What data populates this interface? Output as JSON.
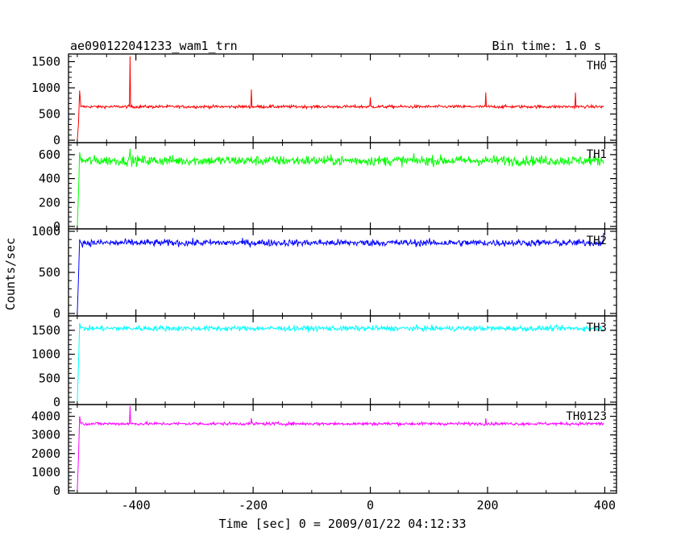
{
  "chart_data": {
    "type": "line",
    "title": "ae090122041233_wam1_trn",
    "subtitle": "Bin time: 1.0 s",
    "xlabel": "Time [sec] 0 = 2009/01/22 04:12:33",
    "ylabel": "Counts/sec",
    "xlim": [
      -515,
      420
    ],
    "x_ticks": [
      -400,
      -200,
      0,
      200,
      400
    ],
    "x_tick_labels": [
      "-400",
      "-200",
      "0",
      "200",
      "400"
    ],
    "panels": [
      {
        "name": "TH0",
        "color": "#ff0000",
        "ylim": [
          0,
          1600
        ],
        "y_ticks": [
          0,
          500,
          1000,
          1500
        ],
        "y_tick_labels": [
          "0",
          "500",
          "1000",
          "1500"
        ],
        "start": -500,
        "mean": 640,
        "noise": 20,
        "first_peak": 950,
        "spikes": [
          [
            -410,
            1600
          ],
          [
            -203,
            970
          ],
          [
            0,
            820
          ],
          [
            197,
            910
          ],
          [
            350,
            910
          ]
        ]
      },
      {
        "name": "TH1",
        "color": "#00ff00",
        "ylim": [
          0,
          680
        ],
        "y_ticks": [
          0,
          200,
          400,
          600
        ],
        "y_tick_labels": [
          "0",
          "200",
          "400",
          "600"
        ],
        "start": -500,
        "mean": 550,
        "noise": 30,
        "first_peak": 620,
        "spikes": [
          [
            -410,
            650
          ]
        ]
      },
      {
        "name": "TH2",
        "color": "#0000ff",
        "ylim": [
          0,
          1000
        ],
        "y_ticks": [
          0,
          500,
          1000
        ],
        "y_tick_labels": [
          "0",
          "500",
          "1000"
        ],
        "start": -500,
        "mean": 860,
        "noise": 30,
        "first_peak": 900,
        "spikes": [
          [
            398,
            980
          ]
        ]
      },
      {
        "name": "TH3",
        "color": "#00ffff",
        "ylim": [
          0,
          1750
        ],
        "y_ticks": [
          0,
          500,
          1000,
          1500
        ],
        "y_tick_labels": [
          "0",
          "500",
          "1000",
          "1500"
        ],
        "start": -500,
        "mean": 1540,
        "noise": 40,
        "first_peak": 1650,
        "spikes": []
      },
      {
        "name": "TH0123",
        "color": "#ff00ff",
        "ylim": [
          0,
          4500
        ],
        "y_ticks": [
          0,
          1000,
          2000,
          3000,
          4000
        ],
        "y_tick_labels": [
          "0",
          "1000",
          "2000",
          "3000",
          "4000"
        ],
        "start": -500,
        "mean": 3600,
        "noise": 60,
        "first_peak": 4000,
        "spikes": [
          [
            -410,
            4550
          ],
          [
            -203,
            3900
          ],
          [
            197,
            3900
          ]
        ]
      }
    ]
  }
}
